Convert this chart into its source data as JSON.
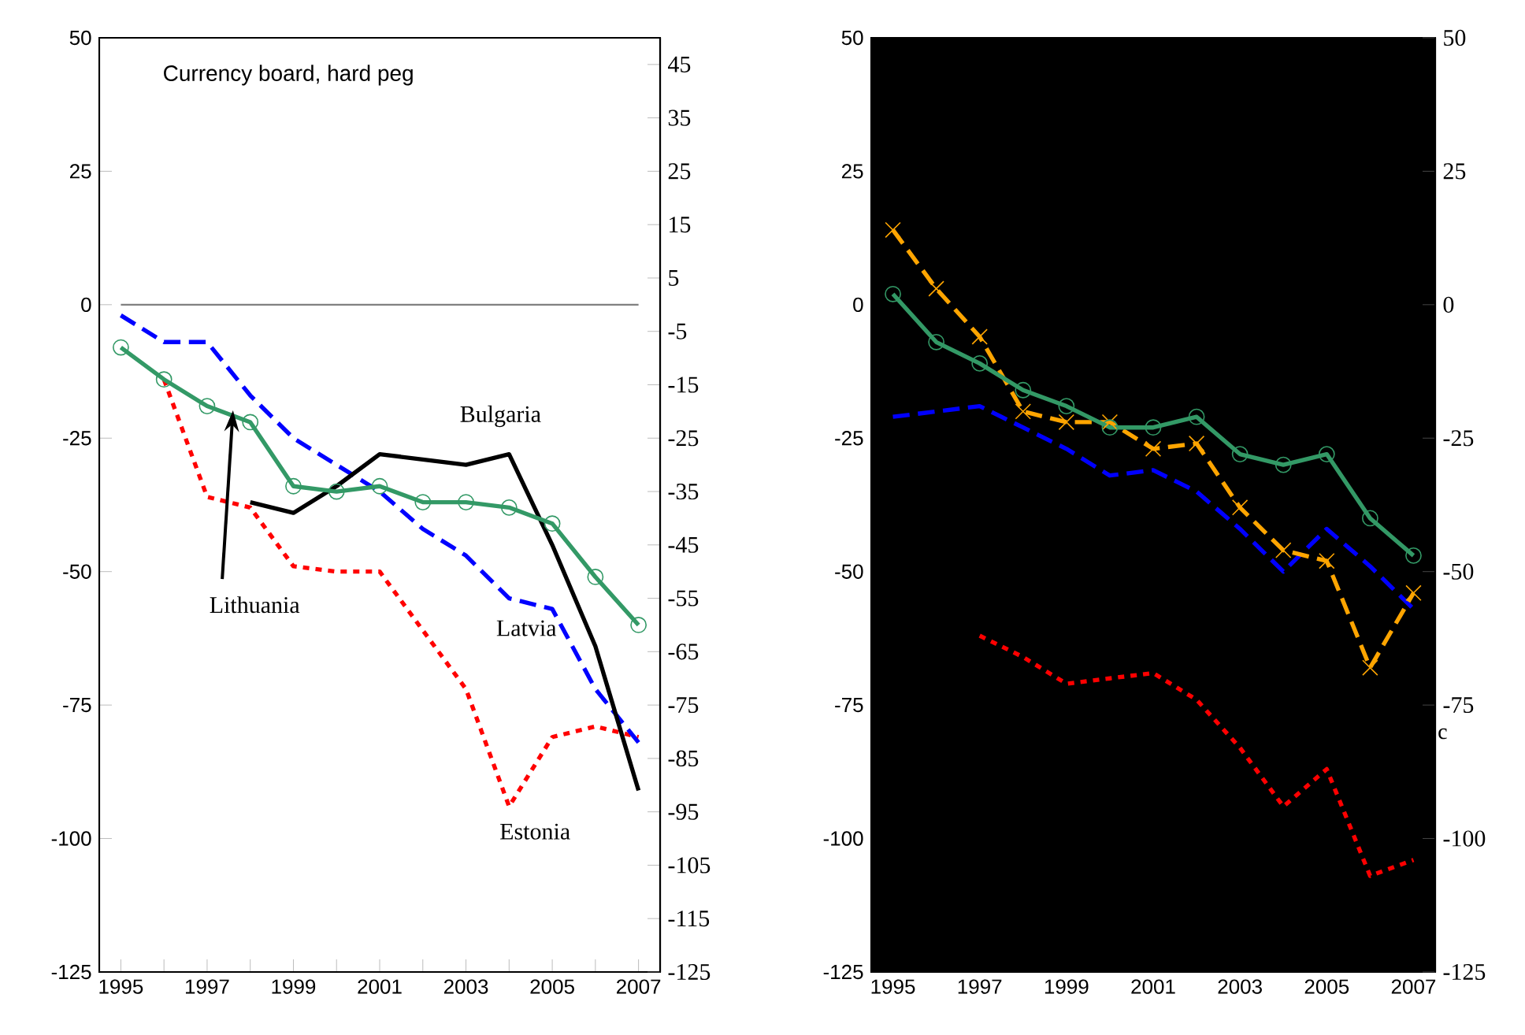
{
  "chart_data": [
    {
      "type": "line",
      "title": "Currency board, hard peg",
      "x": [
        1995,
        1996,
        1997,
        1998,
        1999,
        2000,
        2001,
        2002,
        2003,
        2004,
        2005,
        2006,
        2007
      ],
      "xlim": [
        1994.5,
        2007.5
      ],
      "xticks": [
        1995,
        {
          "value": 1996,
          "label": null
        },
        1997,
        {
          "value": 1998,
          "label": null
        },
        1999,
        {
          "value": 2000,
          "label": null
        },
        2001,
        {
          "value": 2002,
          "label": null
        },
        2003,
        {
          "value": 2004,
          "label": null
        },
        2005,
        {
          "value": 2006,
          "label": null
        },
        2007
      ],
      "ylim": [
        -125,
        50
      ],
      "yticks": [
        50,
        25,
        0,
        -25,
        -50,
        -75,
        -100,
        -125
      ],
      "y2lim": [
        -125,
        50
      ],
      "y2ticks": [
        45,
        35,
        25,
        15,
        5,
        -5,
        -15,
        -25,
        -35,
        -45,
        -55,
        -65,
        -75,
        -85,
        -95,
        -105,
        -115,
        -125
      ],
      "ref_lines": [
        {
          "axis": "y",
          "value": 0,
          "color": "#808080"
        }
      ],
      "series": [
        {
          "name": "Estonia",
          "color": "#ff0000",
          "line_style": "dotted",
          "values": [
            null,
            -14,
            -36,
            -38,
            -49,
            -50,
            -50,
            -61,
            -72,
            -94,
            -81,
            -79,
            -81
          ]
        },
        {
          "name": "Latvia",
          "color": "#0000ff",
          "line_style": "dashed",
          "values": [
            -2,
            -7,
            -7,
            -17,
            -25,
            -30,
            -35,
            -42,
            -47,
            -55,
            -57,
            -72,
            -82
          ]
        },
        {
          "name": "Bulgaria",
          "color": "#000000",
          "line_style": "solid",
          "values": [
            null,
            null,
            null,
            -37,
            -39,
            -34,
            -28,
            -29,
            -30,
            -28,
            -45,
            -64,
            -91
          ]
        },
        {
          "name": "Lithuania",
          "color": "#339966",
          "line_style": "solid",
          "marker": "circle",
          "values": [
            -8,
            -14,
            -19,
            -22,
            -34,
            -35,
            -34,
            -37,
            -37,
            -38,
            -41,
            -51,
            -60
          ]
        }
      ]
    },
    {
      "type": "line",
      "x": [
        1995,
        1996,
        1997,
        1998,
        1999,
        2000,
        2001,
        2002,
        2003,
        2004,
        2005,
        2006,
        2007
      ],
      "xlim": [
        1994.5,
        2007.5
      ],
      "xticks": [
        1995,
        {
          "value": 1996,
          "label": null
        },
        1997,
        {
          "value": 1998,
          "label": null
        },
        1999,
        {
          "value": 2000,
          "label": null
        },
        2001,
        {
          "value": 2002,
          "label": null
        },
        2003,
        {
          "value": 2004,
          "label": null
        },
        2005,
        {
          "value": 2006,
          "label": null
        },
        2007
      ],
      "ylim": [
        -125,
        50
      ],
      "yticks": [
        50,
        25,
        0,
        -25,
        -50,
        -75,
        -100,
        -125
      ],
      "y2lim": [
        -125,
        50
      ],
      "y2ticks": [
        50,
        25,
        0,
        -25,
        -50,
        -75,
        -100,
        -125
      ],
      "annotations": [
        "c"
      ],
      "series": [
        {
          "color": "#ff0000",
          "line_style": "dotted",
          "values": [
            null,
            null,
            -62,
            -66,
            -71,
            -70,
            -69,
            -74,
            -83,
            -94,
            -87,
            -107,
            -104
          ]
        },
        {
          "color": "#0000ff",
          "line_style": "dashed",
          "values": [
            -21,
            -20,
            -19,
            -23,
            -27,
            -32,
            -31,
            -35,
            -42,
            -50,
            -42,
            -49,
            -57
          ]
        },
        {
          "color": "#ffa500",
          "line_style": "dashed",
          "marker": "cross",
          "values": [
            14,
            3,
            -6,
            -20,
            -22,
            -22,
            -27,
            -26,
            -38,
            -46,
            -48,
            -68,
            -54
          ]
        },
        {
          "color": "#339966",
          "line_style": "solid",
          "marker": "circle",
          "values": [
            2,
            -7,
            -11,
            -16,
            -19,
            -23,
            -23,
            -21,
            -28,
            -30,
            -28,
            -40,
            -47
          ]
        }
      ]
    }
  ]
}
